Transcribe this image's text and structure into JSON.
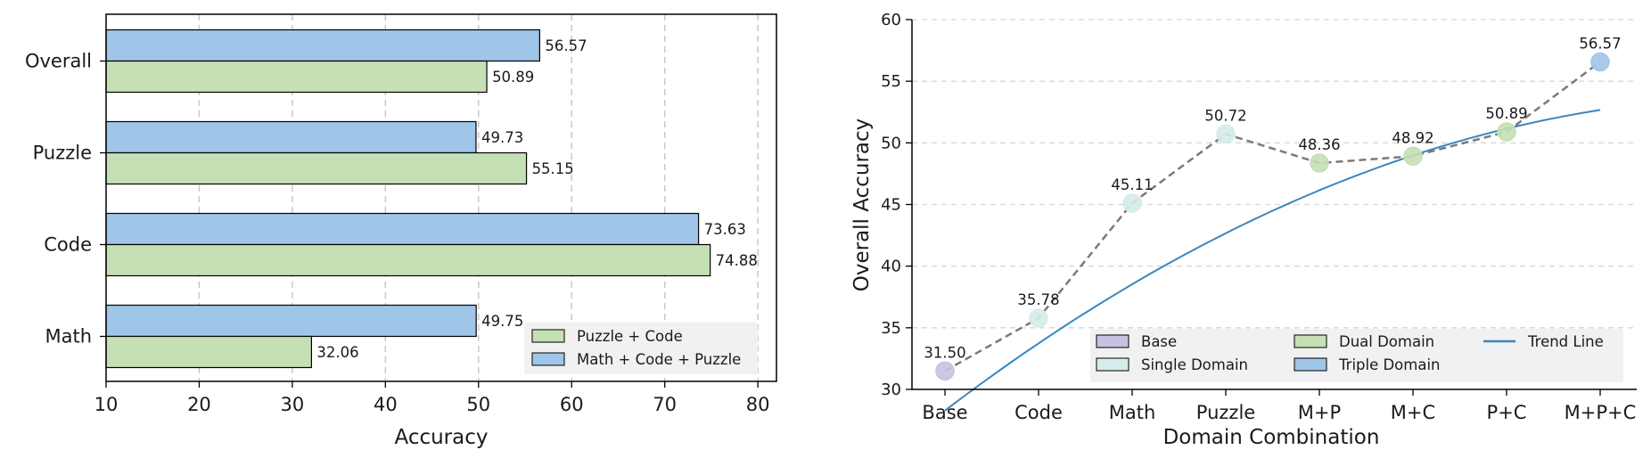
{
  "chart_data": [
    {
      "type": "bar",
      "orientation": "horizontal",
      "categories": [
        "Overall",
        "Puzzle",
        "Code",
        "Math"
      ],
      "series": [
        {
          "name": "Math + Code + Puzzle",
          "color": "#9fc5e8",
          "values": [
            56.57,
            49.73,
            73.63,
            49.75
          ],
          "labels": [
            "56.57",
            "49.73",
            "73.63",
            "49.75"
          ]
        },
        {
          "name": "Puzzle + Code",
          "color": "#c5e0b4",
          "values": [
            50.89,
            55.15,
            74.88,
            32.06
          ],
          "labels": [
            "50.89",
            "55.15",
            "74.88",
            "32.06"
          ]
        }
      ],
      "legend_order": [
        "Puzzle + Code",
        "Math + Code + Puzzle"
      ],
      "xlabel": "Accuracy",
      "xlim": [
        10,
        82
      ],
      "xticks": [
        "10",
        "20",
        "30",
        "40",
        "50",
        "60",
        "70",
        "80"
      ],
      "grid": "vertical-dashed",
      "legend_position": "lower-right"
    },
    {
      "type": "scatter",
      "categories": [
        "Base",
        "Code",
        "Math",
        "Puzzle",
        "M+P",
        "M+C",
        "P+C",
        "M+P+C"
      ],
      "values": [
        31.5,
        35.78,
        45.11,
        50.72,
        48.36,
        48.92,
        50.89,
        56.57
      ],
      "labels": [
        "31.50",
        "35.78",
        "45.11",
        "50.72",
        "48.36",
        "48.92",
        "50.89",
        "56.57"
      ],
      "groups": [
        "Base",
        "Single Domain",
        "Single Domain",
        "Single Domain",
        "Dual Domain",
        "Dual Domain",
        "Dual Domain",
        "Triple Domain"
      ],
      "group_colors": {
        "Base": "#c7c2e0",
        "Single Domain": "#d4ecea",
        "Dual Domain": "#c5e0b4",
        "Triple Domain": "#9fc5e8"
      },
      "connector": "dashed",
      "trend_line": {
        "name": "Trend Line",
        "color": "#3a87c0",
        "quadratic": [
          -0.328,
          5.78,
          28.28
        ]
      },
      "xlabel": "Domain Combination",
      "ylabel": "Overall Accuracy",
      "ylim": [
        30,
        60
      ],
      "yticks": [
        "30",
        "35",
        "40",
        "45",
        "50",
        "55",
        "60"
      ],
      "grid": "horizontal-dashed",
      "legend": [
        "Base",
        "Single Domain",
        "Dual Domain",
        "Triple Domain",
        "Trend Line"
      ],
      "legend_position": "bottom"
    }
  ]
}
